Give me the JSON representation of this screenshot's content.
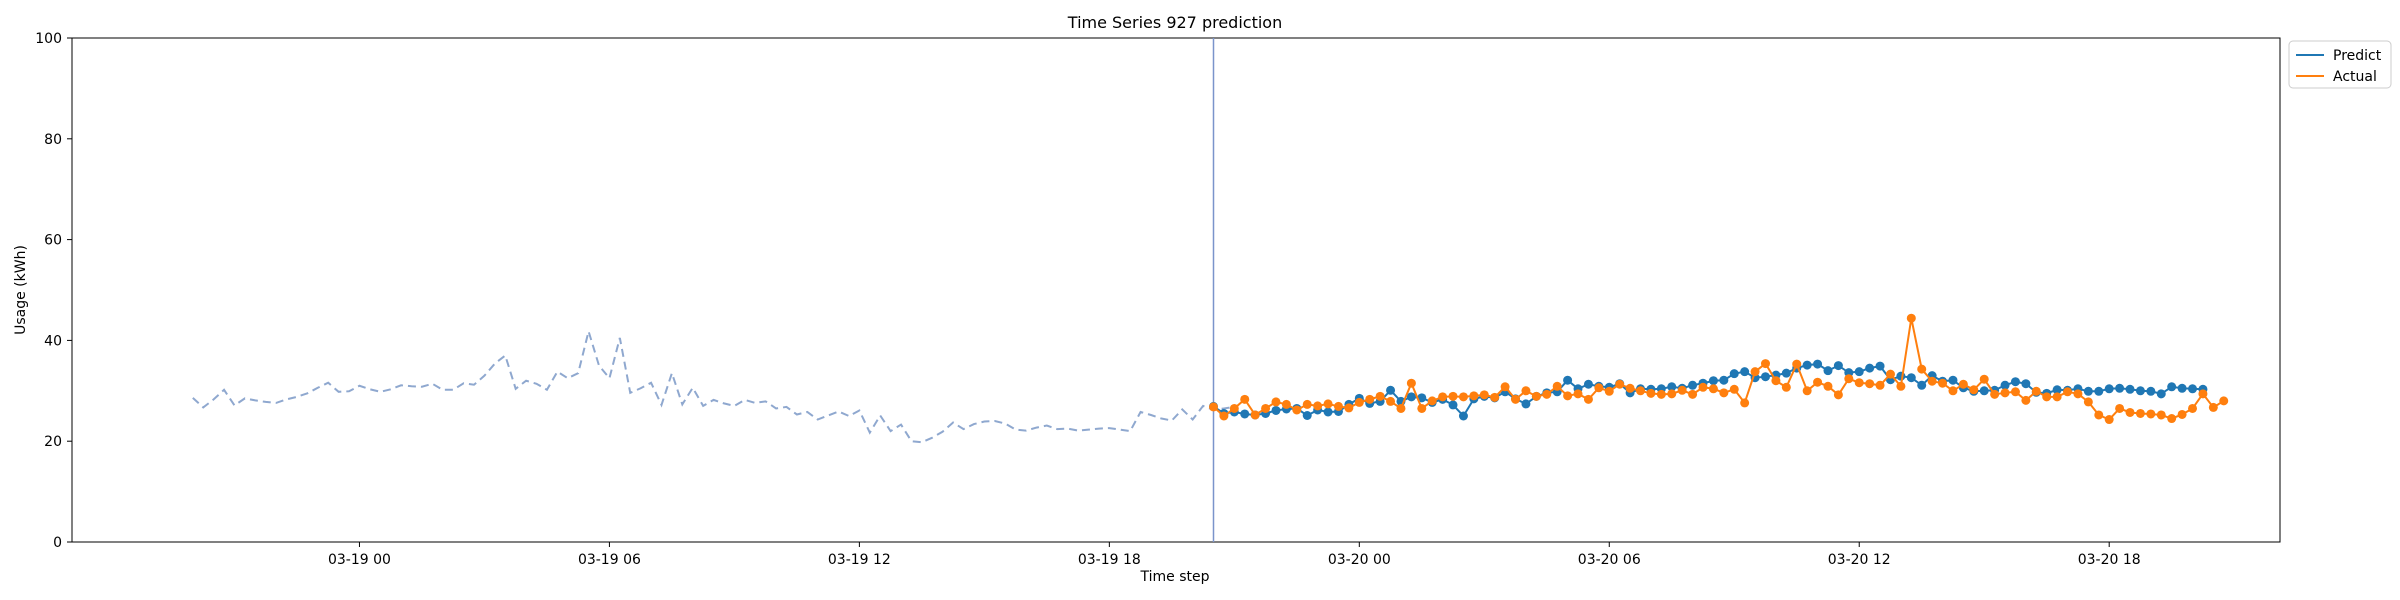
{
  "chart_data": {
    "type": "line",
    "title": "Time Series 927 prediction",
    "xlabel": "Time step",
    "ylabel": "Usage (kWh)",
    "ylim": [
      0,
      100
    ],
    "y_ticks": [
      0,
      20,
      40,
      60,
      80,
      100
    ],
    "x_ticks": [
      "03-19 00",
      "03-19 06",
      "03-19 12",
      "03-19 18",
      "03-20 00",
      "03-20 06",
      "03-20 12",
      "03-20 18"
    ],
    "x_tick_hours": [
      0,
      6,
      12,
      18,
      24,
      30,
      36,
      42
    ],
    "xlim_hours": [
      -6.9,
      46.1
    ],
    "forecast_start_hour": 20.5,
    "grid": false,
    "legend_position": "outside-top-right",
    "colors": {
      "history": "#8fa8cf",
      "predict": "#1f77b4",
      "actual": "#ff7f0e",
      "vline": "#7b94cb"
    },
    "history": {
      "start_hour": -4.0,
      "step_hours": 0.25,
      "values": [
        28.6,
        26.7,
        28.3,
        30.2,
        27.1,
        28.5,
        28.1,
        27.8,
        27.6,
        28.3,
        28.8,
        29.5,
        30.6,
        31.6,
        29.8,
        29.9,
        31.0,
        30.3,
        29.8,
        30.3,
        31.1,
        30.9,
        30.8,
        31.4,
        30.2,
        30.2,
        31.5,
        31.2,
        33.0,
        35.4,
        37.0,
        30.4,
        32.0,
        31.4,
        30.2,
        33.8,
        32.5,
        33.5,
        41.8,
        35.0,
        32.5,
        40.5,
        29.6,
        30.5,
        31.6,
        27.2,
        33.5,
        27.3,
        30.6,
        27.0,
        28.2,
        27.5,
        27.0,
        28.2,
        27.6,
        27.9,
        26.5,
        26.8,
        25.3,
        25.8,
        24.3,
        25.1,
        25.9,
        25.0,
        26.1,
        21.7,
        25.1,
        22.0,
        23.3,
        20.0,
        19.8,
        20.7,
        21.9,
        23.7,
        22.4,
        23.4,
        23.9,
        24.0,
        23.5,
        22.3,
        22.1,
        22.7,
        23.1,
        22.4,
        22.5,
        22.1,
        22.3,
        22.5,
        22.6,
        22.3,
        22.0,
        25.8,
        25.2,
        24.5,
        24.1,
        26.3,
        24.3,
        27.0,
        26.2,
        26.5,
        26.8
      ]
    },
    "series": [
      {
        "name": "Predict",
        "start_hour": 20.5,
        "step_hours": 0.25,
        "values": [
          26.9,
          25.5,
          25.8,
          25.4,
          25.2,
          25.5,
          26.1,
          26.4,
          26.5,
          25.1,
          26.2,
          25.8,
          25.9,
          27.3,
          28.5,
          27.5,
          27.9,
          30.1,
          27.9,
          28.8,
          28.6,
          27.7,
          28.3,
          27.2,
          25.0,
          28.4,
          28.9,
          28.6,
          29.8,
          28.4,
          27.4,
          28.9,
          29.6,
          29.8,
          32.1,
          30.4,
          31.3,
          30.9,
          30.7,
          31.4,
          29.6,
          30.4,
          30.3,
          30.4,
          30.8,
          30.5,
          31.1,
          31.5,
          32.0,
          32.1,
          33.4,
          33.8,
          32.6,
          32.8,
          33.1,
          33.5,
          34.5,
          35.1,
          35.3,
          34.0,
          35.0,
          33.6,
          33.8,
          34.5,
          34.9,
          32.2,
          32.9,
          32.6,
          31.1,
          33.0,
          31.9,
          32.1,
          30.6,
          29.9,
          30.0,
          30.1,
          31.1,
          31.8,
          31.4,
          29.7,
          29.5,
          30.2,
          30.1,
          30.4,
          29.9,
          29.9,
          30.4,
          30.5,
          30.3,
          30.0,
          29.9,
          29.4,
          30.8,
          30.5,
          30.4,
          30.3
        ]
      },
      {
        "name": "Actual",
        "start_hour": 20.5,
        "step_hours": 0.25,
        "values": [
          26.8,
          25.0,
          26.5,
          28.3,
          25.2,
          26.5,
          27.8,
          27.3,
          26.2,
          27.3,
          27.0,
          27.4,
          26.9,
          26.6,
          27.7,
          28.3,
          28.9,
          27.9,
          26.5,
          31.5,
          26.5,
          28.0,
          28.8,
          28.9,
          28.8,
          29.0,
          29.2,
          28.7,
          30.8,
          28.3,
          30.0,
          28.9,
          29.3,
          30.9,
          29.0,
          29.4,
          28.3,
          30.6,
          29.9,
          31.3,
          30.5,
          30.0,
          29.5,
          29.3,
          29.4,
          30.1,
          29.3,
          30.7,
          30.4,
          29.6,
          30.3,
          27.6,
          33.8,
          35.4,
          32.0,
          30.7,
          35.3,
          30.0,
          31.7,
          30.9,
          29.2,
          32.4,
          31.6,
          31.4,
          31.1,
          33.3,
          30.9,
          44.4,
          34.3,
          31.9,
          31.5,
          30.0,
          31.3,
          30.2,
          32.3,
          29.3,
          29.6,
          29.8,
          28.1,
          29.9,
          28.8,
          28.8,
          29.8,
          29.4,
          27.8,
          25.2,
          24.3,
          26.5,
          25.7,
          25.5,
          25.4,
          25.2,
          24.5,
          25.3,
          26.5,
          29.4,
          26.7,
          28.0
        ]
      }
    ]
  }
}
